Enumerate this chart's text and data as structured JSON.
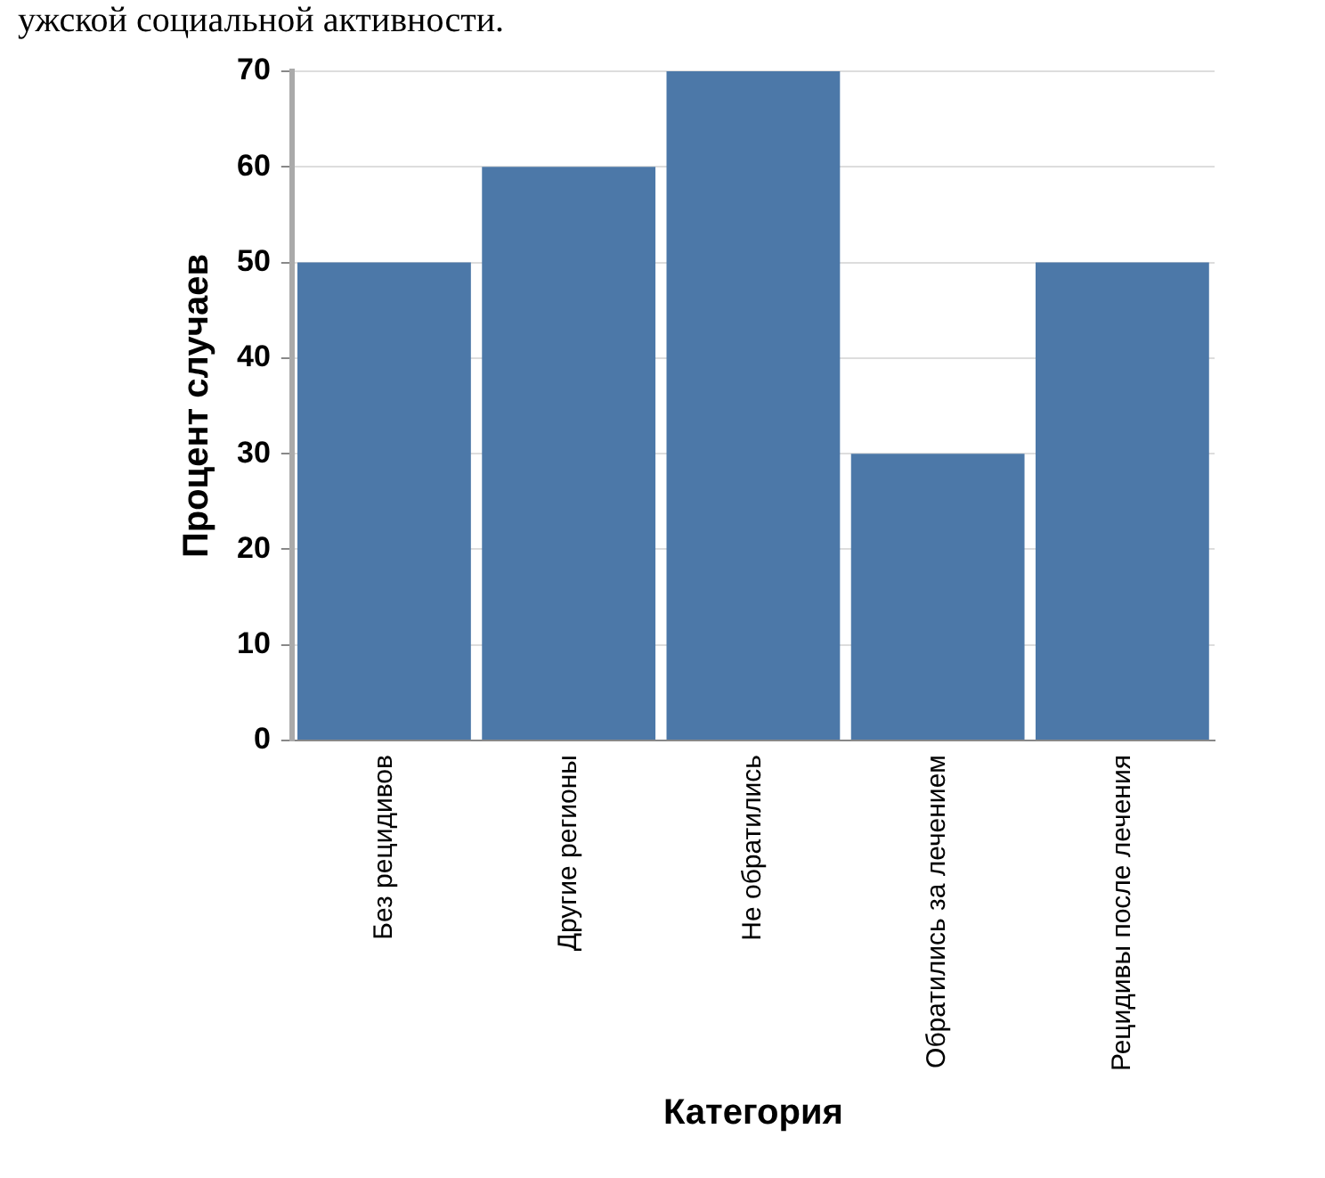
{
  "chart_data": {
    "type": "bar",
    "xlabel": "Категория",
    "ylabel": "Процент случаев",
    "annotations": [
      "ужской социальной активности."
    ],
    "categories": [
      "Без рецидивов",
      "Другие регионы",
      "Не обратились",
      "Обратились за лечением",
      "Рецидивы после лечения"
    ],
    "values": [
      50,
      60,
      70,
      30,
      50
    ],
    "color": "#4c78a8",
    "ylim": [
      0,
      70
    ],
    "yticks": [
      0,
      10,
      20,
      30,
      40,
      50,
      60,
      70
    ],
    "grid": "y",
    "legend": false
  }
}
